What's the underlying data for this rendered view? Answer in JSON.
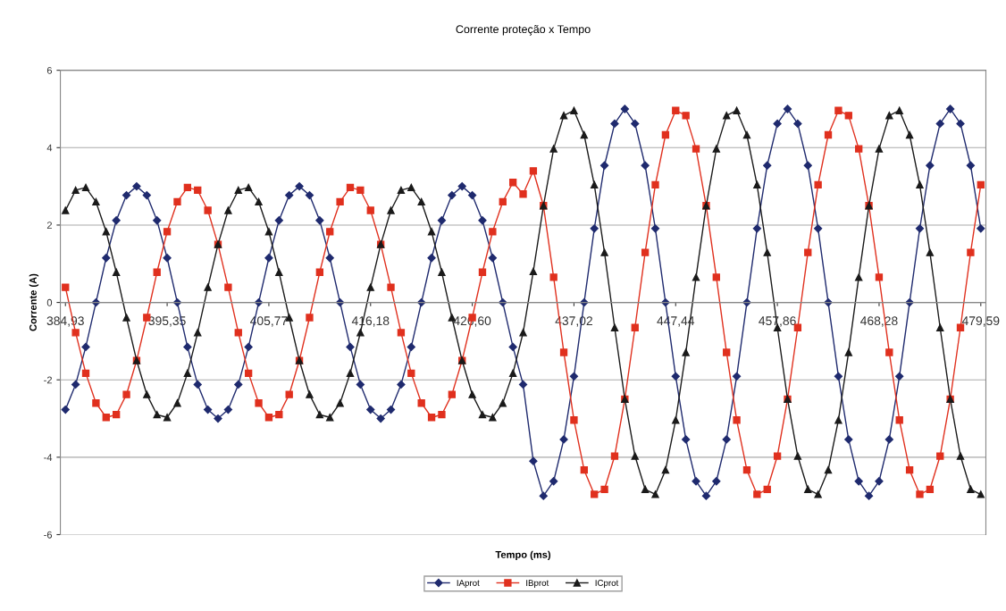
{
  "chart_data": {
    "type": "line",
    "title": "Corrente proteção x Tempo",
    "xlabel": "Tempo (ms)",
    "ylabel": "Corrente (A)",
    "categories": [
      "384,93",
      null,
      null,
      null,
      null,
      null,
      null,
      null,
      null,
      null,
      "395,35",
      null,
      null,
      null,
      null,
      null,
      null,
      null,
      null,
      null,
      "405,77",
      null,
      null,
      null,
      null,
      null,
      null,
      null,
      null,
      null,
      "416,18",
      null,
      null,
      null,
      null,
      null,
      null,
      null,
      null,
      null,
      "426,60",
      null,
      null,
      null,
      null,
      null,
      null,
      null,
      null,
      null,
      "437,02",
      null,
      null,
      null,
      null,
      null,
      null,
      null,
      null,
      null,
      "447,44",
      null,
      null,
      null,
      null,
      null,
      null,
      null,
      null,
      null,
      "457,86",
      null,
      null,
      null,
      null,
      null,
      null,
      null,
      null,
      null,
      "468,28",
      null,
      null,
      null,
      null,
      null,
      null,
      null,
      null,
      null,
      "479,59"
    ],
    "series": [
      {
        "name": "IAprot",
        "color": "#1f2a6e",
        "marker": "diamond",
        "values": [
          -2.77,
          -2.12,
          -1.15,
          0,
          1.15,
          2.12,
          2.77,
          3,
          2.77,
          2.12,
          1.15,
          0,
          -1.15,
          -2.12,
          -2.77,
          -3,
          -2.77,
          -2.12,
          -1.15,
          0,
          1.15,
          2.12,
          2.77,
          3,
          2.77,
          2.12,
          1.15,
          0,
          -1.15,
          -2.12,
          -2.77,
          -3,
          -2.77,
          -2.12,
          -1.15,
          0,
          1.15,
          2.12,
          2.77,
          3,
          2.77,
          2.12,
          1.15,
          0,
          -1.15,
          -2.12,
          -4.1,
          -5,
          -4.62,
          -3.54,
          -1.91,
          0,
          1.91,
          3.54,
          4.62,
          5,
          4.62,
          3.54,
          1.91,
          0,
          -1.91,
          -3.54,
          -4.62,
          -5,
          -4.62,
          -3.54,
          -1.91,
          0,
          1.91,
          3.54,
          4.62,
          5,
          4.62,
          3.54,
          1.91,
          0,
          -1.91,
          -3.54,
          -4.62,
          -5,
          -4.62,
          -3.54,
          -1.91,
          0,
          1.91,
          3.54,
          4.62,
          5,
          4.62,
          3.54,
          1.91
        ]
      },
      {
        "name": "IBprot",
        "color": "#e0301e",
        "marker": "square",
        "values": [
          0.39,
          -0.78,
          -1.83,
          -2.6,
          -2.97,
          -2.9,
          -2.38,
          -1.5,
          -0.39,
          0.78,
          1.83,
          2.6,
          2.97,
          2.9,
          2.38,
          1.5,
          0.39,
          -0.78,
          -1.83,
          -2.6,
          -2.97,
          -2.9,
          -2.38,
          -1.5,
          -0.39,
          0.78,
          1.83,
          2.6,
          2.97,
          2.9,
          2.38,
          1.5,
          0.39,
          -0.78,
          -1.83,
          -2.6,
          -2.97,
          -2.9,
          -2.38,
          -1.5,
          -0.39,
          0.78,
          1.83,
          2.6,
          3.1,
          2.8,
          3.4,
          2.5,
          0.65,
          -1.29,
          -3.04,
          -4.33,
          -4.96,
          -4.83,
          -3.97,
          -2.5,
          -0.65,
          1.29,
          3.04,
          4.33,
          4.96,
          4.83,
          3.97,
          2.5,
          0.65,
          -1.29,
          -3.04,
          -4.33,
          -4.96,
          -4.83,
          -3.97,
          -2.5,
          -0.65,
          1.29,
          3.04,
          4.33,
          4.96,
          4.83,
          3.97,
          2.5,
          0.65,
          -1.29,
          -3.04,
          -4.33,
          -4.96,
          -4.83,
          -3.97,
          -2.5,
          -0.65,
          1.29,
          3.04
        ]
      },
      {
        "name": "ICprot",
        "color": "#1a1a1a",
        "marker": "triangle",
        "values": [
          2.38,
          2.9,
          2.97,
          2.6,
          1.83,
          0.78,
          -0.39,
          -1.5,
          -2.38,
          -2.9,
          -2.97,
          -2.6,
          -1.83,
          -0.78,
          0.39,
          1.5,
          2.38,
          2.9,
          2.97,
          2.6,
          1.83,
          0.78,
          -0.39,
          -1.5,
          -2.38,
          -2.9,
          -2.97,
          -2.6,
          -1.83,
          -0.78,
          0.39,
          1.5,
          2.38,
          2.9,
          2.97,
          2.6,
          1.83,
          0.78,
          -0.39,
          -1.5,
          -2.38,
          -2.9,
          -2.97,
          -2.6,
          -1.83,
          -0.78,
          0.8,
          2.5,
          3.97,
          4.83,
          4.96,
          4.33,
          3.04,
          1.29,
          -0.65,
          -2.5,
          -3.97,
          -4.83,
          -4.96,
          -4.33,
          -3.04,
          -1.29,
          0.65,
          2.5,
          3.97,
          4.83,
          4.96,
          4.33,
          3.04,
          1.29,
          -0.65,
          -2.5,
          -3.97,
          -4.83,
          -4.96,
          -4.33,
          -3.04,
          -1.29,
          0.65,
          2.5,
          3.97,
          4.83,
          4.96,
          4.33,
          3.04,
          1.29,
          -0.65,
          -2.5,
          -3.97,
          -4.83,
          -4.96
        ]
      }
    ],
    "ylim": [
      -6,
      6
    ],
    "yticks": [
      -6,
      -4,
      -2,
      0,
      2,
      4,
      6
    ],
    "grid": "y",
    "legend": "bottom",
    "line_style": "solid"
  }
}
